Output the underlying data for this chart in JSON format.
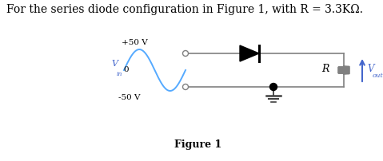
{
  "title_text": "For the series diode configuration in Figure 1, with R = 3.3KΩ.",
  "figure_label": "Figure 1",
  "bg_color": "#ffffff",
  "title_fontsize": 10,
  "vin_label": "V",
  "vin_sub": "in",
  "vout_label": "V",
  "vout_sub": "out",
  "R_label": "R",
  "plus50": "+50 V",
  "minus50": "-50 V",
  "zero_label": "0",
  "sine_color": "#55aaff",
  "circuit_color": "#808080",
  "diode_color": "#000000",
  "vout_arrow_color": "#4466cc",
  "vout_text_color": "#4466cc",
  "resistor_color": "#808080",
  "dot_color": "#000000",
  "text_color": "#000000",
  "vin_color": "#4466cc",
  "ground_color": "#404040"
}
